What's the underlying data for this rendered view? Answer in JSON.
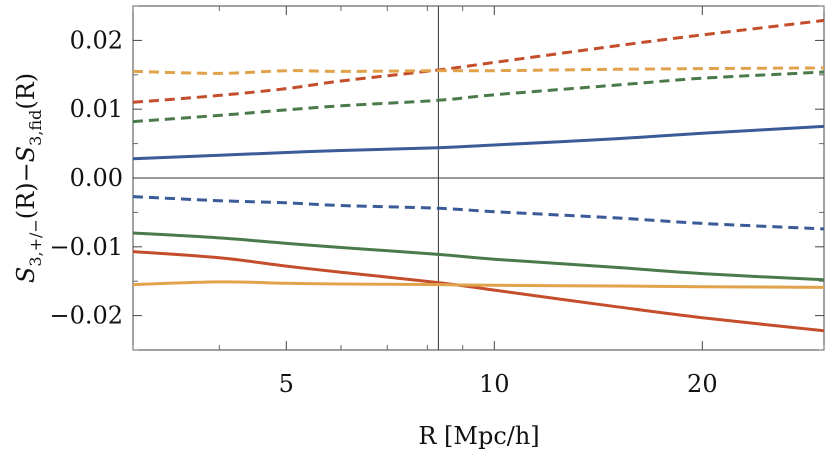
{
  "chart_data": {
    "type": "line",
    "title": "",
    "xlabel": "R [Mpc/h]",
    "ylabel": "S3,+/−(R)−S3,fid(R)",
    "ylabel_parts": {
      "s1": "S",
      "sub1": "3,+/−",
      "mid": "(R)−",
      "s2": "S",
      "sub2": "3,fid",
      "end": "(R)"
    },
    "x_scale": "log",
    "xlim": [
      3.0,
      30.0
    ],
    "ylim": [
      -0.025,
      0.025
    ],
    "x_ticks": [
      {
        "value": 5,
        "label": "5"
      },
      {
        "value": 10,
        "label": "10"
      },
      {
        "value": 20,
        "label": "20"
      }
    ],
    "y_ticks": [
      {
        "value": 0.02,
        "label": "0.02"
      },
      {
        "value": 0.01,
        "label": "0.01"
      },
      {
        "value": 0.0,
        "label": "0.00"
      },
      {
        "value": -0.01,
        "label": "−0.01"
      },
      {
        "value": -0.02,
        "label": "−0.02"
      }
    ],
    "x_minor_ticks": [
      3,
      4,
      6,
      7,
      8,
      9,
      30
    ],
    "y_minor_ticks": [
      -0.025,
      -0.015,
      -0.005,
      0.005,
      0.015,
      0.025
    ],
    "reference_lines": [
      {
        "orientation": "vertical",
        "x": 8.3
      },
      {
        "orientation": "horizontal",
        "y": 0.0
      }
    ],
    "x": [
      3.0,
      4.0,
      5.0,
      6.0,
      8.3,
      10.0,
      15.0,
      20.0,
      30.0
    ],
    "series": [
      {
        "color": "#c44e2c",
        "style": "dashed",
        "values": [
          0.011,
          0.012,
          0.013,
          0.0141,
          0.0157,
          0.0168,
          0.0192,
          0.0208,
          0.0229
        ]
      },
      {
        "color": "#e0a24a",
        "style": "dashed",
        "values": [
          0.0155,
          0.0152,
          0.0156,
          0.0155,
          0.0156,
          0.0156,
          0.0158,
          0.0159,
          0.016
        ]
      },
      {
        "color": "#4a7a4a",
        "style": "dashed",
        "values": [
          0.0082,
          0.0091,
          0.0099,
          0.0105,
          0.0113,
          0.0121,
          0.0135,
          0.0145,
          0.0154
        ]
      },
      {
        "color": "#3a5a98",
        "style": "solid",
        "values": [
          0.0028,
          0.0033,
          0.0037,
          0.004,
          0.0044,
          0.0048,
          0.0057,
          0.0065,
          0.0075
        ]
      },
      {
        "color": "#3a5a98",
        "style": "dashed",
        "values": [
          -0.0027,
          -0.0033,
          -0.0036,
          -0.004,
          -0.0044,
          -0.0049,
          -0.0058,
          -0.0066,
          -0.0074
        ]
      },
      {
        "color": "#4a7a4a",
        "style": "solid",
        "values": [
          -0.008,
          -0.0087,
          -0.0095,
          -0.0101,
          -0.0111,
          -0.0118,
          -0.013,
          -0.0139,
          -0.0148
        ]
      },
      {
        "color": "#c44e2c",
        "style": "solid",
        "values": [
          -0.0107,
          -0.0116,
          -0.0128,
          -0.0137,
          -0.0152,
          -0.0163,
          -0.0187,
          -0.0203,
          -0.0222
        ]
      },
      {
        "color": "#e0a24a",
        "style": "solid",
        "values": [
          -0.0155,
          -0.0151,
          -0.0153,
          -0.0154,
          -0.0155,
          -0.0156,
          -0.0157,
          -0.0158,
          -0.0159
        ]
      }
    ]
  }
}
